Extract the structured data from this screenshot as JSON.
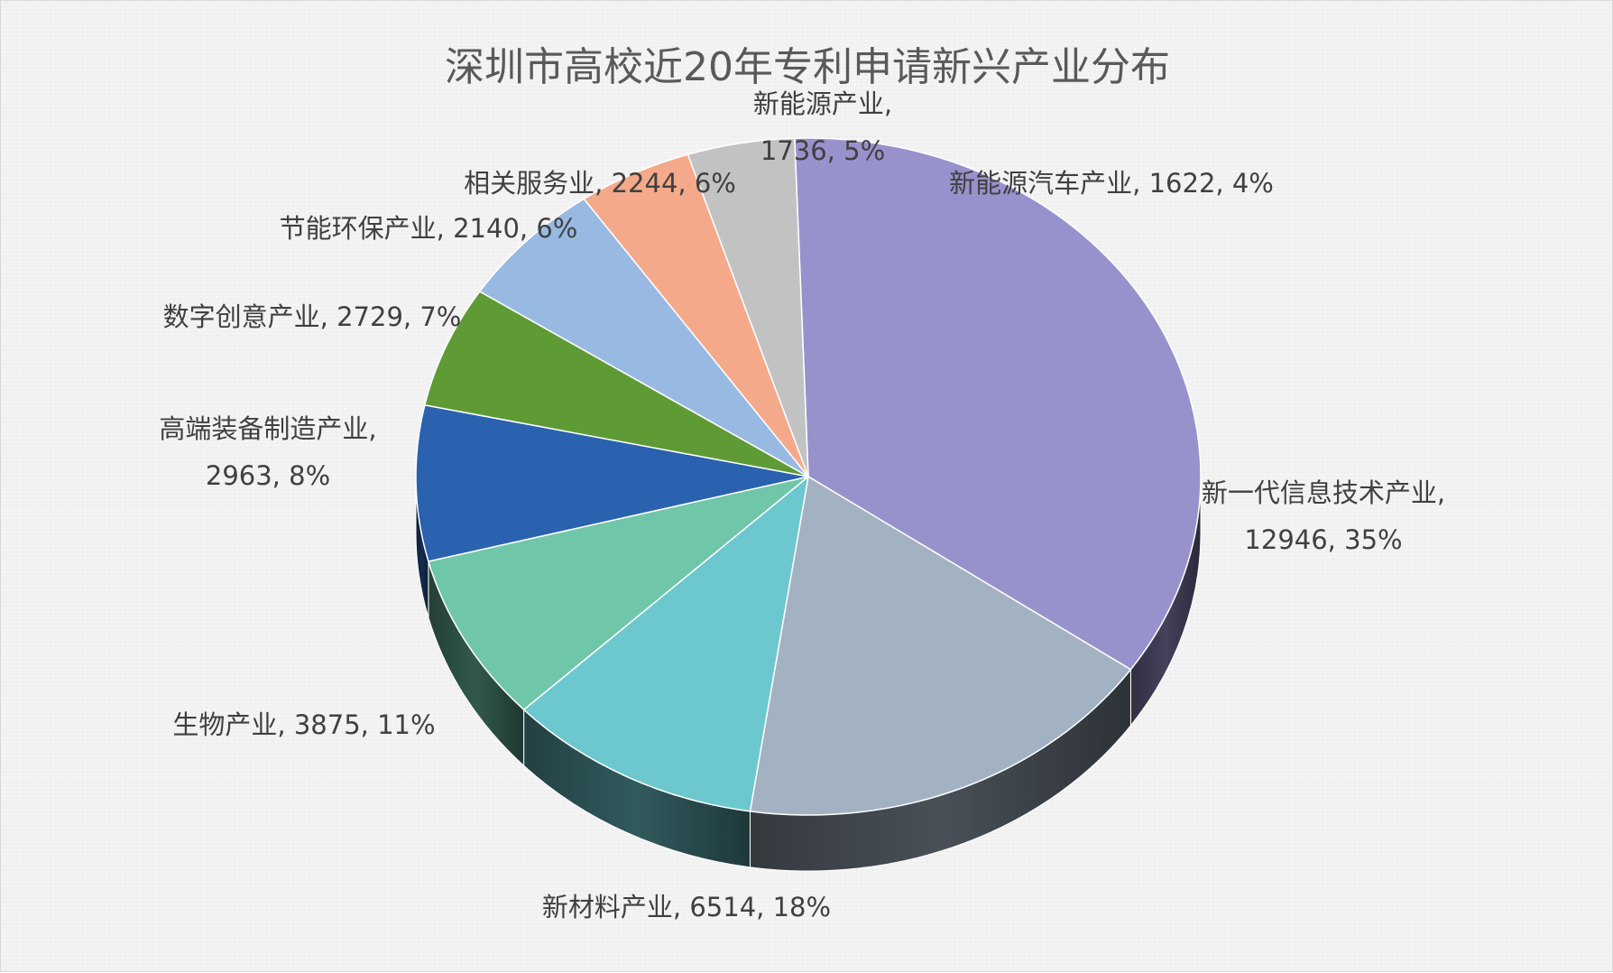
{
  "chart_data": {
    "type": "pie",
    "title": "深圳市高校近20年专利申请新兴产业分布",
    "slices": [
      {
        "label": "新一代信息技术产业",
        "value": 12946,
        "percent": "35%",
        "color": "#9892CC"
      },
      {
        "label": "新材料产业",
        "value": 6514,
        "percent": "18%",
        "color": "#A2B2C3"
      },
      {
        "label": "生物产业",
        "value": 3875,
        "percent": "11%",
        "color": "#6CC8CE"
      },
      {
        "label": "高端装备制造产业",
        "value": 2963,
        "percent": "8%",
        "color": "#6FC6A9"
      },
      {
        "label": "数字创意产业",
        "value": 2729,
        "percent": "7%",
        "color": "#2B62AF"
      },
      {
        "label": "节能环保产业",
        "value": 2140,
        "percent": "6%",
        "color": "#5F9B35"
      },
      {
        "label": "相关服务业",
        "value": 2244,
        "percent": "6%",
        "color": "#98BAE2"
      },
      {
        "label": "新能源产业",
        "value": 1736,
        "percent": "5%",
        "color": "#F4AA8A"
      },
      {
        "label": "新能源汽车产业",
        "value": 1622,
        "percent": "4%",
        "color": "#C2C2C2"
      }
    ],
    "data_labels": [
      {
        "lines": [
          "新一代信息技术产业,",
          "12946, 35%"
        ]
      },
      {
        "lines": [
          "新材料产业, 6514, 18%"
        ]
      },
      {
        "lines": [
          "生物产业, 3875, 11%"
        ]
      },
      {
        "lines": [
          "高端装备制造产业,",
          "2963, 8%"
        ]
      },
      {
        "lines": [
          "数字创意产业, 2729, 7%"
        ]
      },
      {
        "lines": [
          "节能环保产业, 2140, 6%"
        ]
      },
      {
        "lines": [
          "相关服务业, 2244, 6%"
        ]
      },
      {
        "lines": [
          "新能源产业,",
          "1736, 5%"
        ]
      },
      {
        "lines": [
          "新能源汽车产业, 1622, 4%"
        ]
      }
    ],
    "legend": "none",
    "style": "3d-pie"
  }
}
